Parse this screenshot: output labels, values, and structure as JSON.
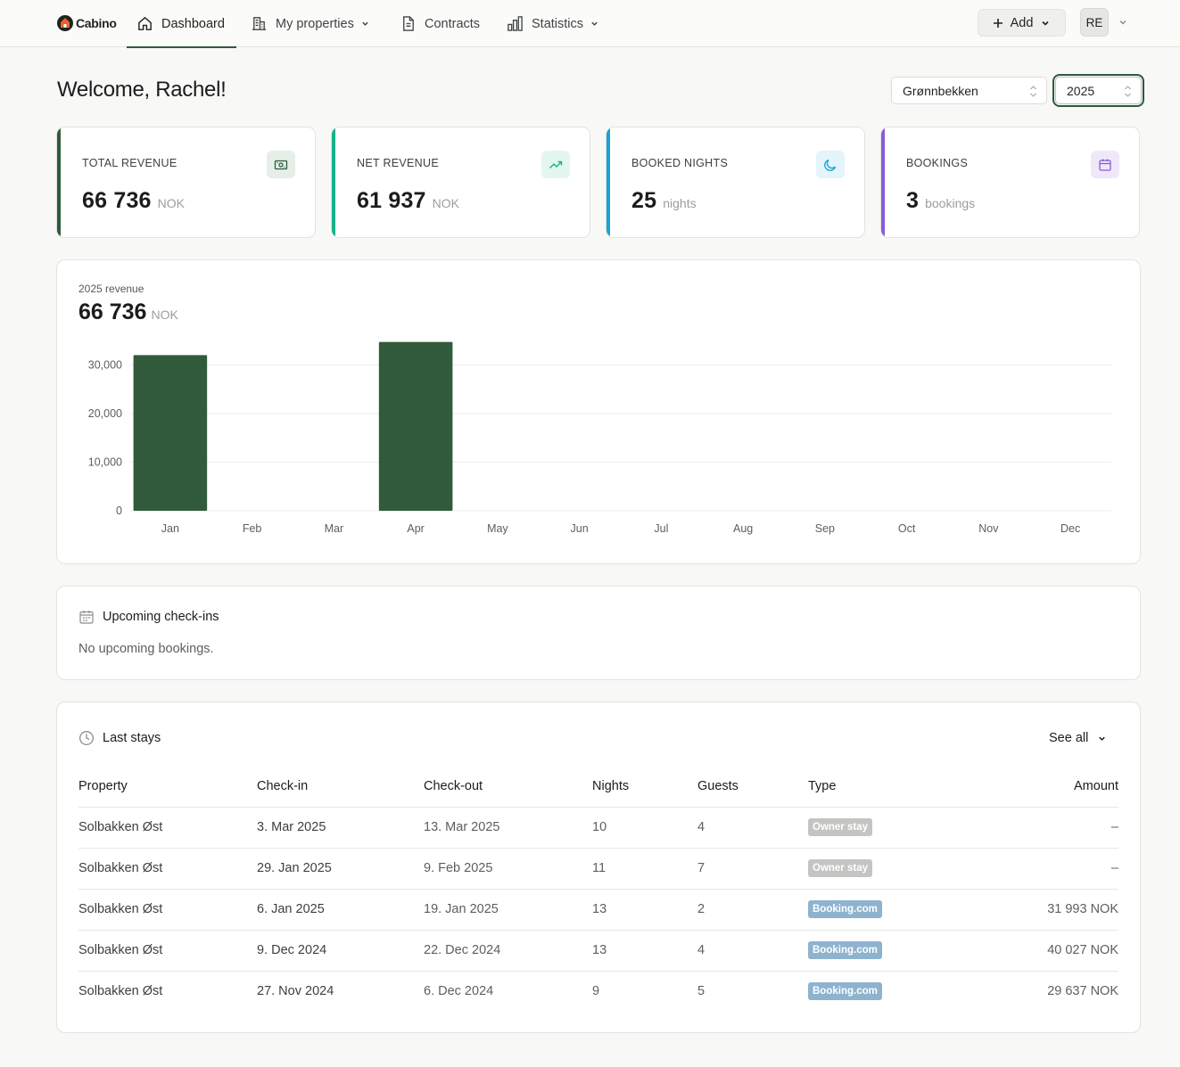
{
  "nav": {
    "brand": "Cabino",
    "items": [
      {
        "label": "Dashboard",
        "icon": "home-icon"
      },
      {
        "label": "My properties",
        "icon": "building-icon"
      },
      {
        "label": "Contracts",
        "icon": "document-icon"
      },
      {
        "label": "Statistics",
        "icon": "bar-chart-icon"
      }
    ],
    "add_label": "Add",
    "avatar_initials": "RE"
  },
  "header": {
    "welcome": "Welcome, Rachel!",
    "property_select": "Grønnbekken",
    "year_select": "2025"
  },
  "stats": [
    {
      "label": "TOTAL REVENUE",
      "value": "66 736",
      "unit": "NOK",
      "color": "#2f5a3c",
      "icon": "money-icon",
      "icon_bg": "#e5efe8",
      "icon_color": "#2f5a3c"
    },
    {
      "label": "NET REVENUE",
      "value": "61 937",
      "unit": "NOK",
      "color": "#16b38a",
      "icon": "trending-up-icon",
      "icon_bg": "#e3f7ef",
      "icon_color": "#16b38a"
    },
    {
      "label": "BOOKED NIGHTS",
      "value": "25",
      "unit": "nights",
      "color": "#1aa2d6",
      "icon": "moon-icon",
      "icon_bg": "#e3f4fb",
      "icon_color": "#1aa2d6"
    },
    {
      "label": "BOOKINGS",
      "value": "3",
      "unit": "bookings",
      "color": "#8a5ad9",
      "icon": "calendar-icon",
      "icon_bg": "#efe8fb",
      "icon_color": "#8a5ad9"
    }
  ],
  "revenue": {
    "subtitle": "2025 revenue",
    "total": "66 736",
    "unit": "NOK"
  },
  "chart_data": {
    "type": "bar",
    "categories": [
      "Jan",
      "Feb",
      "Mar",
      "Apr",
      "May",
      "Jun",
      "Jul",
      "Aug",
      "Sep",
      "Oct",
      "Nov",
      "Dec"
    ],
    "values": [
      32000,
      0,
      0,
      34700,
      0,
      0,
      0,
      0,
      0,
      0,
      0,
      0
    ],
    "yticks": [
      "0",
      "10,000",
      "20,000",
      "30,000"
    ],
    "ytick_values": [
      0,
      10000,
      20000,
      30000
    ],
    "ylim": [
      0,
      35000
    ],
    "grid": true,
    "color": "#315b3c"
  },
  "upcoming": {
    "title": "Upcoming check-ins",
    "empty": "No upcoming bookings."
  },
  "last_stays": {
    "title": "Last stays",
    "see_all": "See all",
    "columns": [
      "Property",
      "Check-in",
      "Check-out",
      "Nights",
      "Guests",
      "Type",
      "Amount"
    ],
    "rows": [
      {
        "property": "Solbakken Øst",
        "checkin": "3. Mar 2025",
        "checkout": "13. Mar 2025",
        "nights": "10",
        "guests": "4",
        "type": "Owner stay",
        "type_color": "#c4c5c3",
        "amount": "–"
      },
      {
        "property": "Solbakken Øst",
        "checkin": "29. Jan 2025",
        "checkout": "9. Feb 2025",
        "nights": "11",
        "guests": "7",
        "type": "Owner stay",
        "type_color": "#c4c5c3",
        "amount": "–"
      },
      {
        "property": "Solbakken Øst",
        "checkin": "6. Jan 2025",
        "checkout": "19. Jan 2025",
        "nights": "13",
        "guests": "2",
        "type": "Booking.com",
        "type_color": "#8eb3cf",
        "amount": "31 993 NOK"
      },
      {
        "property": "Solbakken Øst",
        "checkin": "9. Dec 2024",
        "checkout": "22. Dec 2024",
        "nights": "13",
        "guests": "4",
        "type": "Booking.com",
        "type_color": "#8eb3cf",
        "amount": "40 027 NOK"
      },
      {
        "property": "Solbakken Øst",
        "checkin": "27. Nov 2024",
        "checkout": "6. Dec 2024",
        "nights": "9",
        "guests": "5",
        "type": "Booking.com",
        "type_color": "#8eb3cf",
        "amount": "29 637 NOK"
      }
    ]
  }
}
